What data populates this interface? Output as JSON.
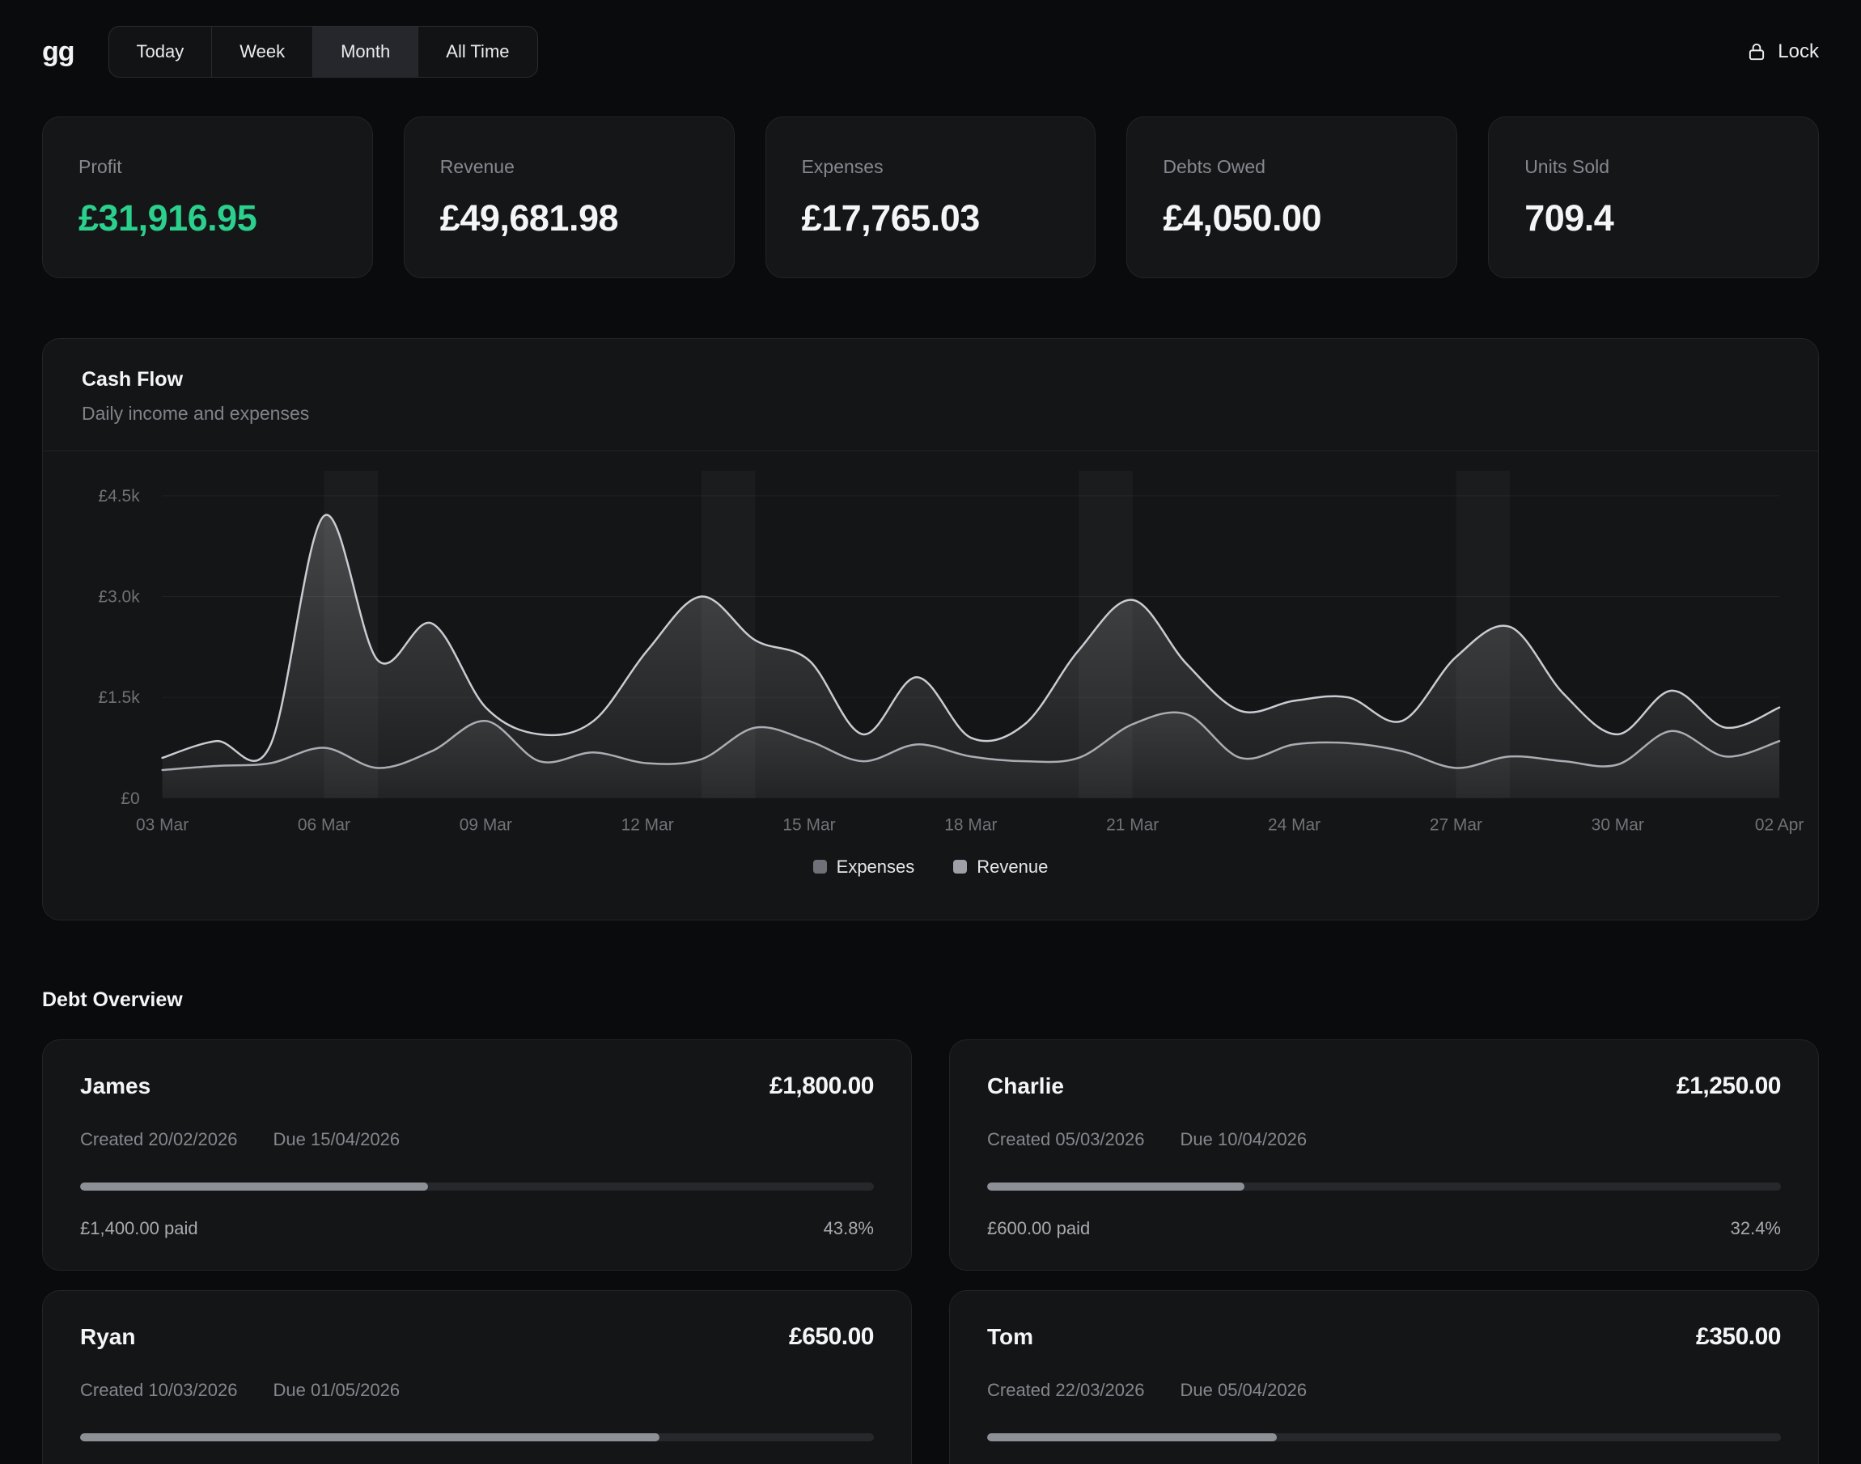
{
  "topbar": {
    "logo": "gg",
    "tabs": [
      {
        "label": "Today",
        "active": false
      },
      {
        "label": "Week",
        "active": false
      },
      {
        "label": "Month",
        "active": true
      },
      {
        "label": "All Time",
        "active": false
      }
    ],
    "lock_label": "Lock"
  },
  "stats": [
    {
      "label": "Profit",
      "value": "£31,916.95",
      "color": "#2bd08d"
    },
    {
      "label": "Revenue",
      "value": "£49,681.98"
    },
    {
      "label": "Expenses",
      "value": "£17,765.03"
    },
    {
      "label": "Debts Owed",
      "value": "£4,050.00"
    },
    {
      "label": "Units Sold",
      "value": "709.4"
    }
  ],
  "cashflow": {
    "title": "Cash Flow",
    "subtitle": "Daily income and expenses"
  },
  "chart_data": {
    "type": "area",
    "title": "Cash Flow",
    "subtitle": "Daily income and expenses",
    "x": [
      "03 Mar",
      "04 Mar",
      "05 Mar",
      "06 Mar",
      "07 Mar",
      "08 Mar",
      "09 Mar",
      "10 Mar",
      "11 Mar",
      "12 Mar",
      "13 Mar",
      "14 Mar",
      "15 Mar",
      "16 Mar",
      "17 Mar",
      "18 Mar",
      "19 Mar",
      "20 Mar",
      "21 Mar",
      "22 Mar",
      "23 Mar",
      "24 Mar",
      "25 Mar",
      "26 Mar",
      "27 Mar",
      "28 Mar",
      "29 Mar",
      "30 Mar",
      "31 Mar",
      "01 Apr",
      "02 Apr"
    ],
    "x_tick_every": 3,
    "series": [
      {
        "name": "Revenue",
        "line_color": "#c9ccd2",
        "values": [
          600,
          850,
          780,
          4200,
          2050,
          2600,
          1350,
          950,
          1150,
          2200,
          3000,
          2350,
          2050,
          950,
          1800,
          900,
          1100,
          2200,
          2950,
          2000,
          1300,
          1450,
          1500,
          1150,
          2100,
          2550,
          1550,
          950,
          1600,
          1050,
          1350
        ]
      },
      {
        "name": "Expenses",
        "line_color": "#aaadb3",
        "values": [
          420,
          480,
          520,
          750,
          450,
          700,
          1150,
          550,
          680,
          520,
          580,
          1050,
          850,
          550,
          800,
          620,
          550,
          600,
          1100,
          1250,
          600,
          800,
          820,
          700,
          450,
          620,
          550,
          500,
          1000,
          620,
          850
        ]
      }
    ],
    "ylim": [
      0,
      4500
    ],
    "yticks": [
      {
        "v": 0,
        "label": "£0"
      },
      {
        "v": 1500,
        "label": "£1.5k"
      },
      {
        "v": 3000,
        "label": "£3.0k"
      },
      {
        "v": 4500,
        "label": "£4.5k"
      }
    ],
    "weekend_band_indices": [
      [
        3,
        4
      ],
      [
        10,
        11
      ],
      [
        17,
        18
      ],
      [
        24,
        25
      ]
    ],
    "grid": true,
    "legend_position": "bottom",
    "legend": [
      {
        "label": "Expenses",
        "color": "#6e7177"
      },
      {
        "label": "Revenue",
        "color": "#9da0a7"
      }
    ]
  },
  "debts": {
    "heading": "Debt Overview",
    "items": [
      {
        "name": "James",
        "amount": "£1,800.00",
        "created": "Created 20/02/2026",
        "due": "Due 15/04/2026",
        "progress_pct": 43.8,
        "paid": "£1,400.00 paid",
        "pct_label": "43.8%"
      },
      {
        "name": "Charlie",
        "amount": "£1,250.00",
        "created": "Created 05/03/2026",
        "due": "Due 10/04/2026",
        "progress_pct": 32.4,
        "paid": "£600.00 paid",
        "pct_label": "32.4%"
      },
      {
        "name": "Ryan",
        "amount": "£650.00",
        "created": "Created 10/03/2026",
        "due": "Due 01/05/2026",
        "progress_pct": 73.0,
        "paid": "",
        "pct_label": ""
      },
      {
        "name": "Tom",
        "amount": "£350.00",
        "created": "Created 22/03/2026",
        "due": "Due 05/04/2026",
        "progress_pct": 36.5,
        "paid": "",
        "pct_label": ""
      }
    ]
  }
}
